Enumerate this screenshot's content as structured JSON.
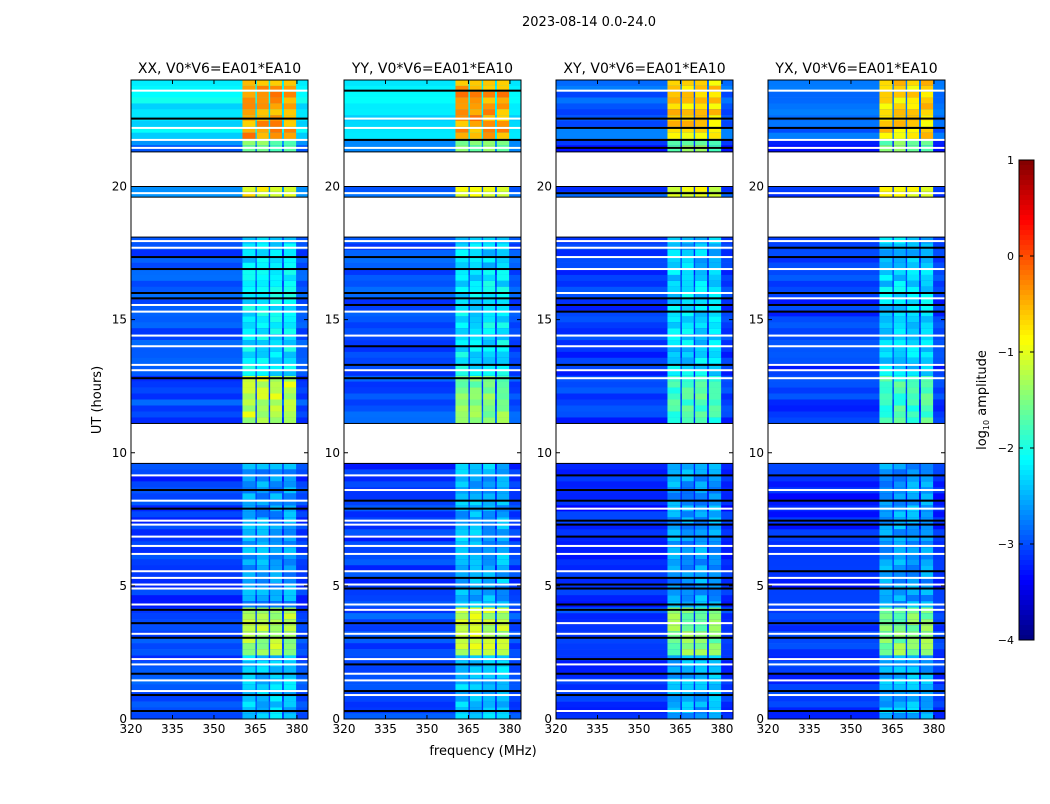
{
  "chart_data": {
    "type": "heatmap",
    "title": "2023-08-14 0.0-24.0",
    "xlabel": "frequency (MHz)",
    "ylabel": "UT (hours)",
    "xlim": [
      320,
      384
    ],
    "ylim": [
      0,
      24
    ],
    "xticks": [
      320,
      335,
      350,
      365,
      380
    ],
    "yticks": [
      0,
      5,
      10,
      15,
      20
    ],
    "colorbar": {
      "label_main": "log",
      "label_sub": "10",
      "label_rest": " amplitude",
      "range": [
        -4,
        1
      ],
      "ticks": [
        1,
        0,
        -1,
        -2,
        -3,
        -4
      ],
      "colormap": "jet"
    },
    "freq_bands": [
      [
        360.3,
        365.0
      ],
      [
        365.5,
        369.8
      ],
      [
        370.3,
        374.6
      ],
      [
        375.3,
        379.7
      ]
    ],
    "flagged_hours": [
      [
        21.3,
        20.0
      ],
      [
        19.6,
        18.1
      ],
      [
        11.1,
        9.6
      ]
    ],
    "flag_lines_hours": [
      0.3,
      0.9,
      1.05,
      1.45,
      1.7,
      2.05,
      2.25,
      3.05,
      3.2,
      3.6,
      4.1,
      4.3,
      4.9,
      5.05,
      5.3,
      5.55,
      6.2,
      6.5,
      6.85,
      7.3,
      7.45,
      7.9,
      8.2,
      8.6,
      9.15,
      12.8,
      13.1,
      13.3,
      14.0,
      14.4,
      15.3,
      15.55,
      15.8,
      16.0,
      16.9,
      17.35,
      17.7,
      17.95,
      19.75,
      21.45,
      21.75,
      22.2,
      22.55,
      23.6
    ],
    "panels": [
      {
        "title": "XX, V0*V6=EA01*EA10",
        "segments": [
          {
            "hours": [
              0,
              2.4
            ],
            "background": -3.0,
            "band": -2.4
          },
          {
            "hours": [
              2.4,
              4.2
            ],
            "background": -3.0,
            "band": -1.3
          },
          {
            "hours": [
              4.2,
              9.6
            ],
            "background": -3.1,
            "band": -2.6
          },
          {
            "hours": [
              11.1,
              12.9
            ],
            "background": -3.0,
            "band": -1.2
          },
          {
            "hours": [
              12.9,
              16.9
            ],
            "background": -3.0,
            "band": -2.2
          },
          {
            "hours": [
              16.9,
              18.1
            ],
            "background": -3.0,
            "band": -2.3
          },
          {
            "hours": [
              19.6,
              20.0
            ],
            "background": -2.8,
            "band": -0.9
          },
          {
            "hours": [
              21.3,
              21.8
            ],
            "background": -2.8,
            "band": -1.6
          },
          {
            "hours": [
              21.8,
              24
            ],
            "background": -2.2,
            "band": -0.4
          }
        ]
      },
      {
        "title": "YY, V0*V6=EA01*EA10",
        "segments": [
          {
            "hours": [
              0,
              2.4
            ],
            "background": -3.0,
            "band": -2.4
          },
          {
            "hours": [
              2.4,
              4.2
            ],
            "background": -3.0,
            "band": -1.2
          },
          {
            "hours": [
              4.2,
              9.6
            ],
            "background": -3.1,
            "band": -2.5
          },
          {
            "hours": [
              11.1,
              12.9
            ],
            "background": -3.0,
            "band": -1.5
          },
          {
            "hours": [
              12.9,
              16.9
            ],
            "background": -3.0,
            "band": -2.2
          },
          {
            "hours": [
              16.9,
              18.1
            ],
            "background": -3.0,
            "band": -2.3
          },
          {
            "hours": [
              19.6,
              20.0
            ],
            "background": -2.8,
            "band": -0.9
          },
          {
            "hours": [
              21.3,
              21.8
            ],
            "background": -2.8,
            "band": -1.6
          },
          {
            "hours": [
              21.8,
              24
            ],
            "background": -2.2,
            "band": -0.4
          }
        ]
      },
      {
        "title": "XY, V0*V6=EA01*EA10",
        "segments": [
          {
            "hours": [
              0,
              2.4
            ],
            "background": -3.1,
            "band": -2.5
          },
          {
            "hours": [
              2.4,
              4.2
            ],
            "background": -3.1,
            "band": -1.5
          },
          {
            "hours": [
              4.2,
              9.6
            ],
            "background": -3.2,
            "band": -2.6
          },
          {
            "hours": [
              11.1,
              12.9
            ],
            "background": -3.1,
            "band": -1.8
          },
          {
            "hours": [
              12.9,
              16.9
            ],
            "background": -3.1,
            "band": -2.3
          },
          {
            "hours": [
              16.9,
              18.1
            ],
            "background": -3.1,
            "band": -2.4
          },
          {
            "hours": [
              19.6,
              20.0
            ],
            "background": -3.0,
            "band": -1.0
          },
          {
            "hours": [
              21.3,
              21.8
            ],
            "background": -3.2,
            "band": -1.6
          },
          {
            "hours": [
              21.8,
              24
            ],
            "background": -2.9,
            "band": -0.7
          }
        ]
      },
      {
        "title": "YX, V0*V6=EA01*EA10",
        "segments": [
          {
            "hours": [
              0,
              2.4
            ],
            "background": -3.1,
            "band": -2.5
          },
          {
            "hours": [
              2.4,
              4.2
            ],
            "background": -3.1,
            "band": -1.5
          },
          {
            "hours": [
              4.2,
              9.6
            ],
            "background": -3.2,
            "band": -2.6
          },
          {
            "hours": [
              11.1,
              12.9
            ],
            "background": -3.1,
            "band": -1.8
          },
          {
            "hours": [
              12.9,
              16.9
            ],
            "background": -3.1,
            "band": -2.3
          },
          {
            "hours": [
              16.9,
              18.1
            ],
            "background": -3.1,
            "band": -2.4
          },
          {
            "hours": [
              19.6,
              20.0
            ],
            "background": -3.0,
            "band": -1.0
          },
          {
            "hours": [
              21.3,
              21.8
            ],
            "background": -3.2,
            "band": -1.6
          },
          {
            "hours": [
              21.8,
              24
            ],
            "background": -2.9,
            "band": -0.7
          }
        ]
      }
    ]
  }
}
